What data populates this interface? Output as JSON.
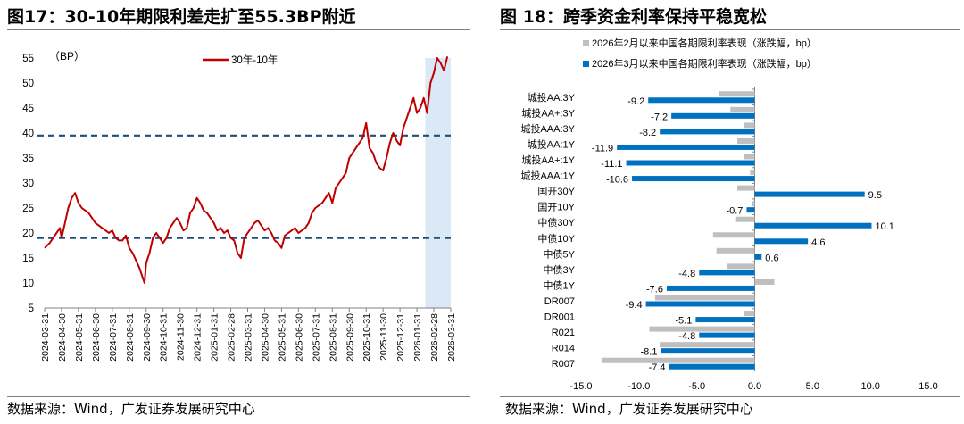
{
  "left_panel": {
    "title": "图17：30-10年期限利差走扩至55.3BP附近",
    "source": "数据来源：Wind，广发证券发展研究中心"
  },
  "right_panel": {
    "title": "图 18：跨季资金利率保持平稳宽松",
    "source": "数据来源：Wind，广发证券发展研究中心"
  },
  "colors": {
    "line": "#c00000",
    "dash": "#1f4e79",
    "shade": "#dbe8f6",
    "bar_grey": "#bfbfbf",
    "bar_blue": "#0070c0",
    "axis": "#808080",
    "rule": "#7f7f7f"
  },
  "chart_data": [
    {
      "type": "line",
      "title": "30-10年期限利差",
      "ylabel": "（BP）",
      "ylim": [
        5,
        55
      ],
      "yticks": [
        5,
        10,
        15,
        20,
        25,
        30,
        35,
        40,
        45,
        50,
        55
      ],
      "legend": [
        "30年-10年"
      ],
      "legend_position": "top-center",
      "x_tick_labels": [
        "2024-03-31",
        "2024-04-30",
        "2024-05-31",
        "2024-06-30",
        "2024-07-31",
        "2024-08-31",
        "2024-09-30",
        "2024-10-31",
        "2024-11-30",
        "2024-12-31",
        "2025-01-31",
        "2025-02-28",
        "2025-03-31",
        "2025-04-30",
        "2025-05-31",
        "2025-06-30",
        "2025-07-31",
        "2025-08-31",
        "2025-09-30",
        "2025-10-31",
        "2025-11-30",
        "2025-12-31",
        "2026-01-31",
        "2026-02-28",
        "2026-03-31"
      ],
      "series": [
        {
          "name": "30年-10年",
          "points": [
            [
              0,
              17
            ],
            [
              0.3,
              18
            ],
            [
              0.6,
              19.5
            ],
            [
              0.9,
              21
            ],
            [
              1.0,
              19
            ],
            [
              1.2,
              22
            ],
            [
              1.4,
              25
            ],
            [
              1.6,
              27
            ],
            [
              1.8,
              28
            ],
            [
              2.0,
              26
            ],
            [
              2.2,
              25
            ],
            [
              2.4,
              24.5
            ],
            [
              2.6,
              24
            ],
            [
              2.8,
              23
            ],
            [
              3.0,
              22
            ],
            [
              3.2,
              21.5
            ],
            [
              3.4,
              21
            ],
            [
              3.6,
              20.5
            ],
            [
              3.8,
              20
            ],
            [
              4.0,
              20.5
            ],
            [
              4.2,
              19
            ],
            [
              4.4,
              18.5
            ],
            [
              4.6,
              18.5
            ],
            [
              4.8,
              19.5
            ],
            [
              5.0,
              17
            ],
            [
              5.2,
              16
            ],
            [
              5.4,
              14.5
            ],
            [
              5.6,
              13
            ],
            [
              5.8,
              11
            ],
            [
              5.9,
              10
            ],
            [
              6.0,
              14
            ],
            [
              6.2,
              16
            ],
            [
              6.4,
              19
            ],
            [
              6.6,
              20
            ],
            [
              6.8,
              19
            ],
            [
              7.0,
              18
            ],
            [
              7.2,
              19
            ],
            [
              7.4,
              21
            ],
            [
              7.6,
              22
            ],
            [
              7.8,
              23
            ],
            [
              8.0,
              22
            ],
            [
              8.2,
              20.5
            ],
            [
              8.4,
              21
            ],
            [
              8.6,
              24
            ],
            [
              8.8,
              25
            ],
            [
              9.0,
              27
            ],
            [
              9.2,
              26
            ],
            [
              9.4,
              24.5
            ],
            [
              9.6,
              24
            ],
            [
              9.8,
              23
            ],
            [
              10.0,
              22
            ],
            [
              10.2,
              20.5
            ],
            [
              10.4,
              21
            ],
            [
              10.6,
              20
            ],
            [
              10.8,
              20.5
            ],
            [
              11.0,
              19
            ],
            [
              11.2,
              18.5
            ],
            [
              11.4,
              16
            ],
            [
              11.6,
              15
            ],
            [
              11.8,
              19
            ],
            [
              12.0,
              20
            ],
            [
              12.2,
              21
            ],
            [
              12.4,
              22
            ],
            [
              12.6,
              22.5
            ],
            [
              12.8,
              21.5
            ],
            [
              13.0,
              20.5
            ],
            [
              13.2,
              21
            ],
            [
              13.4,
              20
            ],
            [
              13.6,
              18.5
            ],
            [
              13.8,
              18
            ],
            [
              14.0,
              17
            ],
            [
              14.2,
              19.5
            ],
            [
              14.4,
              20
            ],
            [
              14.6,
              20.5
            ],
            [
              14.8,
              21
            ],
            [
              15.0,
              20
            ],
            [
              15.2,
              20.5
            ],
            [
              15.4,
              21
            ],
            [
              15.6,
              22
            ],
            [
              15.8,
              24
            ],
            [
              16.0,
              25
            ],
            [
              16.2,
              25.5
            ],
            [
              16.4,
              26
            ],
            [
              16.6,
              27
            ],
            [
              16.8,
              28
            ],
            [
              17.0,
              26
            ],
            [
              17.2,
              29
            ],
            [
              17.4,
              30
            ],
            [
              17.6,
              31
            ],
            [
              17.8,
              32
            ],
            [
              18.0,
              35
            ],
            [
              18.2,
              36
            ],
            [
              18.4,
              37
            ],
            [
              18.6,
              38
            ],
            [
              18.8,
              39
            ],
            [
              19.0,
              42
            ],
            [
              19.2,
              37
            ],
            [
              19.4,
              36
            ],
            [
              19.6,
              34
            ],
            [
              19.8,
              33
            ],
            [
              20.0,
              32.5
            ],
            [
              20.2,
              35
            ],
            [
              20.4,
              38
            ],
            [
              20.6,
              40
            ],
            [
              20.8,
              38.5
            ],
            [
              21.0,
              37.5
            ],
            [
              21.2,
              41
            ],
            [
              21.4,
              43
            ],
            [
              21.6,
              45
            ],
            [
              21.8,
              47
            ],
            [
              22.0,
              44
            ],
            [
              22.2,
              45
            ],
            [
              22.4,
              47
            ],
            [
              22.6,
              44
            ],
            [
              22.8,
              50
            ],
            [
              23.0,
              52
            ],
            [
              23.2,
              55
            ],
            [
              23.4,
              54
            ],
            [
              23.6,
              52.5
            ],
            [
              23.8,
              55.3
            ]
          ]
        }
      ],
      "reference_lines": [
        {
          "label": "上虚线",
          "y": 39.5,
          "style": "dashed"
        },
        {
          "label": "下虚线",
          "y": 19.0,
          "style": "dashed"
        }
      ],
      "shaded_region": {
        "x_from": 22.6,
        "x_to": 24.0
      }
    },
    {
      "type": "bar",
      "orientation": "horizontal",
      "xlim": [
        -15,
        15
      ],
      "xticks": [
        -15,
        -10,
        -5,
        0,
        5,
        10,
        15
      ],
      "x_tick_labels": [
        "-15.0",
        "-10.0",
        "-5.0",
        "0.0",
        "5.0",
        "10.0",
        "15.0"
      ],
      "legend_position": "top-left",
      "categories": [
        "城投AA:3Y",
        "城投AA+:3Y",
        "城投AAA:3Y",
        "城投AA:1Y",
        "城投AA+:1Y",
        "城投AAA:1Y",
        "国开30Y",
        "国开10Y",
        "中债30Y",
        "中债10Y",
        "中债5Y",
        "中债3Y",
        "中债1Y",
        "DR007",
        "DR001",
        "R021",
        "R014",
        "R007"
      ],
      "series": [
        {
          "name": "2026年2月以来中国各期限利率表现（涨跌幅，bp）",
          "values": [
            -3.1,
            -2.1,
            -0.9,
            -1.5,
            -0.9,
            -0.4,
            -1.5,
            -0.2,
            -1.6,
            -3.6,
            -3.3,
            -2.4,
            1.7,
            -8.6,
            -0.9,
            -9.1,
            -8.2,
            -13.2
          ],
          "labeled": false
        },
        {
          "name": "2026年3月以来中国各期限利率表现（涨跌幅，bp）",
          "values": [
            -9.2,
            -7.2,
            -8.2,
            -11.9,
            -11.1,
            -10.6,
            9.5,
            -0.7,
            10.1,
            4.6,
            0.6,
            -4.8,
            -7.6,
            -9.4,
            -5.1,
            -4.8,
            -8.1,
            -7.4
          ],
          "labeled": true
        }
      ]
    }
  ]
}
